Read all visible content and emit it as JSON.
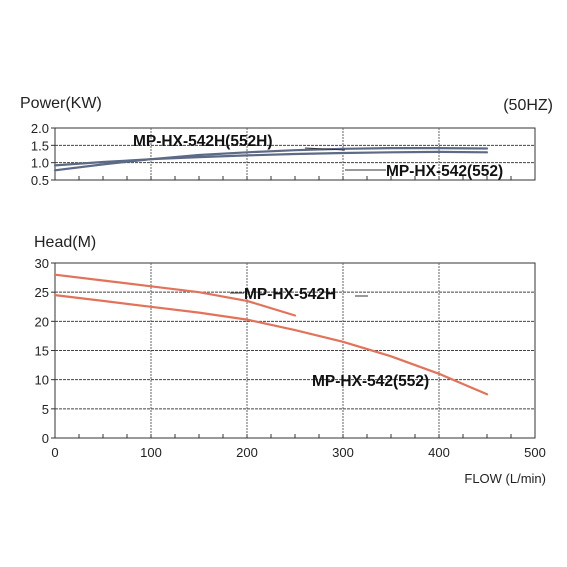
{
  "chart_data": [
    {
      "type": "line",
      "title": "",
      "ylabel": "Power(KW)",
      "xlabel": "",
      "frequency_label": "(50HZ)",
      "xlim": [
        0,
        500
      ],
      "ylim": [
        0.5,
        2.0
      ],
      "yticks": [
        "2.0",
        "1.5",
        "1.0",
        "0.5"
      ],
      "grid": true,
      "series": [
        {
          "name": "MP-HX-542H(552H)",
          "color": "#5d6a86",
          "x": [
            0,
            50,
            100,
            150,
            200,
            250,
            300,
            350,
            400,
            450
          ],
          "y": [
            0.78,
            0.95,
            1.1,
            1.22,
            1.3,
            1.36,
            1.4,
            1.42,
            1.42,
            1.41
          ]
        },
        {
          "name": "MP-HX-542(552)",
          "color": "#5d6a86",
          "x": [
            0,
            50,
            100,
            150,
            200,
            250,
            300,
            350,
            400,
            450
          ],
          "y": [
            0.92,
            1.02,
            1.1,
            1.16,
            1.21,
            1.25,
            1.28,
            1.3,
            1.31,
            1.3
          ]
        }
      ]
    },
    {
      "type": "line",
      "title": "",
      "ylabel": "Head(M)",
      "xlabel": "FLOW (L/min)",
      "xlim": [
        0,
        500
      ],
      "ylim": [
        0,
        30
      ],
      "xticks": [
        "0",
        "100",
        "200",
        "300",
        "400",
        "500"
      ],
      "yticks": [
        "30",
        "25",
        "20",
        "15",
        "10",
        "5",
        "0"
      ],
      "grid": true,
      "series": [
        {
          "name": "MP-HX-542H",
          "color": "#e2735a",
          "x": [
            0,
            50,
            100,
            150,
            200,
            250
          ],
          "y": [
            28.0,
            27.0,
            26.0,
            25.0,
            23.5,
            21.0
          ]
        },
        {
          "name": "MP-HX-542(552)",
          "color": "#e2735a",
          "x": [
            0,
            50,
            100,
            150,
            200,
            250,
            300,
            350,
            400,
            450
          ],
          "y": [
            24.5,
            23.5,
            22.5,
            21.5,
            20.3,
            18.5,
            16.5,
            14.0,
            11.0,
            7.5
          ]
        }
      ]
    }
  ]
}
